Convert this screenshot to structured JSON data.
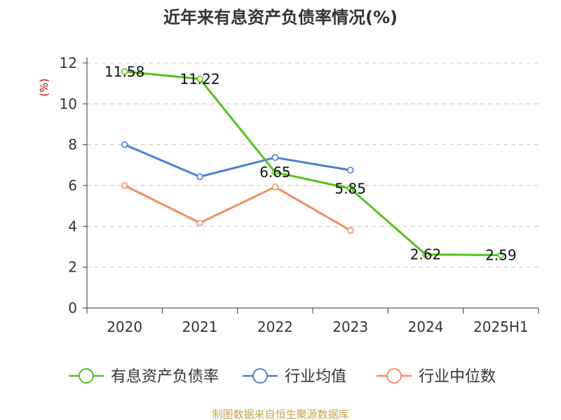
{
  "chart_data": {
    "type": "line",
    "title": "近年来有息资产负债率情况(%)",
    "ylabel": "(%)",
    "categories": [
      "2020",
      "2021",
      "2022",
      "2023",
      "2024",
      "2025H1"
    ],
    "ylim": [
      0,
      12
    ],
    "yticks": [
      0,
      2,
      4,
      6,
      8,
      10,
      12
    ],
    "grid": true,
    "legend_position": "bottom",
    "series": [
      {
        "name": "有息资产负债率",
        "color": "#52c41a",
        "values": [
          11.58,
          11.22,
          6.65,
          5.85,
          2.62,
          2.59
        ],
        "labels": [
          "11.58",
          "11.22",
          "6.65",
          "5.85",
          "2.62",
          "2.59"
        ]
      },
      {
        "name": "行业均值",
        "color": "#4a7fd8",
        "values": [
          8.0,
          6.43,
          7.37,
          6.75,
          null,
          null
        ]
      },
      {
        "name": "行业中位数",
        "color": "#f58d5e",
        "values": [
          6.0,
          4.17,
          5.93,
          3.8,
          null,
          null
        ]
      }
    ],
    "source": "制图数据来自恒生聚源数据库"
  }
}
